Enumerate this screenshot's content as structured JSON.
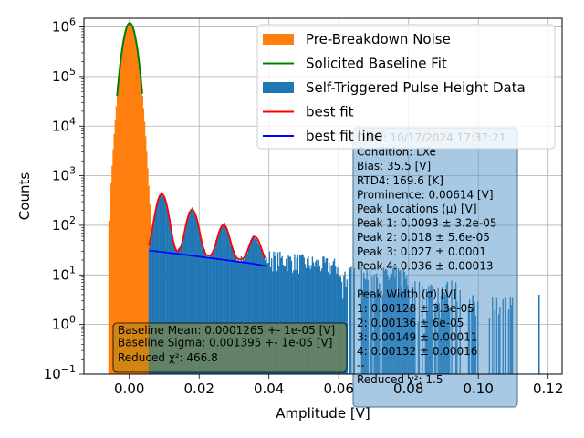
{
  "chart_data": {
    "type": "bar",
    "xlabel": "Amplitude [V]",
    "ylabel": "Counts",
    "xlim": [
      -0.013,
      0.124
    ],
    "ylim": [
      0.1,
      1500000
    ],
    "yscale": "log",
    "grid": true,
    "legend_placement": "top-right",
    "x_ticks": [
      {
        "value": 0.0,
        "label": "0.00"
      },
      {
        "value": 0.02,
        "label": "0.02"
      },
      {
        "value": 0.04,
        "label": "0.04"
      },
      {
        "value": 0.06,
        "label": "0.06"
      },
      {
        "value": 0.08,
        "label": "0.08"
      },
      {
        "value": 0.1,
        "label": "0.10"
      },
      {
        "value": 0.12,
        "label": "0.12"
      }
    ],
    "y_ticks": [
      {
        "value": 0.1,
        "base": "10",
        "exp": "−1"
      },
      {
        "value": 1,
        "base": "10",
        "exp": "0"
      },
      {
        "value": 10,
        "base": "10",
        "exp": "1"
      },
      {
        "value": 100,
        "base": "10",
        "exp": "2"
      },
      {
        "value": 1000,
        "base": "10",
        "exp": "3"
      },
      {
        "value": 10000,
        "base": "10",
        "exp": "4"
      },
      {
        "value": 100000,
        "base": "10",
        "exp": "5"
      },
      {
        "value": 1000000,
        "base": "10",
        "exp": "6"
      }
    ],
    "series": [
      {
        "name": "Pre-Breakdown Noise",
        "kind": "histogram",
        "color": "#ff7f0e",
        "model": {
          "mean": 0.0001265,
          "sigma": 0.001395,
          "amplitude": 1200000,
          "bin_width": 0.0003,
          "x_range": [
            -0.006,
            0.006
          ]
        }
      },
      {
        "name": "Solicited Baseline Fit",
        "kind": "line",
        "color": "#008000",
        "model": {
          "mean": 0.0001265,
          "sigma": 0.001395,
          "amplitude": 1200000,
          "x_range": [
            -0.0035,
            0.0037
          ]
        }
      },
      {
        "name": "Self-Triggered Pulse Height Data",
        "kind": "histogram",
        "color": "#1f77b4",
        "model": {
          "bin_width": 0.0003,
          "x_range": [
            0.0055,
            0.1175
          ],
          "peak_means": [
            0.0093,
            0.018,
            0.027,
            0.036
          ],
          "peak_heights": [
            400,
            180,
            80,
            40
          ],
          "peak_sigma": 0.00135
        }
      },
      {
        "name": "best fit",
        "kind": "line",
        "color": "#ff0000",
        "model": {
          "peak_means": [
            0.0093,
            0.018,
            0.027,
            0.036
          ],
          "peak_heights": [
            400,
            180,
            80,
            40
          ],
          "peak_sigma": 0.00135,
          "x_range": [
            0.0055,
            0.039
          ]
        }
      },
      {
        "name": "best fit line",
        "kind": "line",
        "color": "#0000ff",
        "points": [
          [
            0.0058,
            31
          ],
          [
            0.015,
            26
          ],
          [
            0.025,
            21
          ],
          [
            0.035,
            17
          ],
          [
            0.0395,
            15
          ]
        ]
      }
    ]
  },
  "legend": {
    "items": [
      {
        "label": "Pre-Breakdown Noise",
        "swatch": "patch",
        "color": "#ff7f0e"
      },
      {
        "label": "Solicited Baseline Fit",
        "swatch": "line",
        "color": "#008000"
      },
      {
        "label": "Self-Triggered Pulse Height Data",
        "swatch": "patch",
        "color": "#1f77b4"
      },
      {
        "label": "best fit",
        "swatch": "line",
        "color": "#ff0000"
      },
      {
        "label": "best fit line",
        "swatch": "line",
        "color": "#0000ff"
      }
    ]
  },
  "info_box": {
    "lines": [
      "Date: 10/17/2024 17:37:21",
      "Condition: LXe",
      "Bias: 35.5 [V]",
      "RTD4: 169.6 [K]",
      "Prominence: 0.00614 [V]",
      "Peak Locations (μ) [V]",
      "Peak 1: 0.0093 ± 3.2e-05",
      "Peak 2: 0.018 ± 5.6e-05",
      "Peak 3: 0.027 ± 0.0001",
      "Peak 4: 0.036 ± 0.00013",
      "",
      "Peak Width (σ) [V]",
      "1: 0.00128 ± 3.3e-05",
      "2: 0.00136 ± 6e-05",
      "3: 0.00149 ± 0.00011",
      "4: 0.00132 ± 0.00016",
      "--",
      "Reduced χ²: 1.5"
    ]
  },
  "baseline_box": {
    "lines": [
      "Baseline Mean: 0.0001265 +- 1e-05 [V]",
      "Baseline Sigma: 0.001395 +- 1e-05 [V]",
      "Reduced χ²: 466.8"
    ]
  }
}
